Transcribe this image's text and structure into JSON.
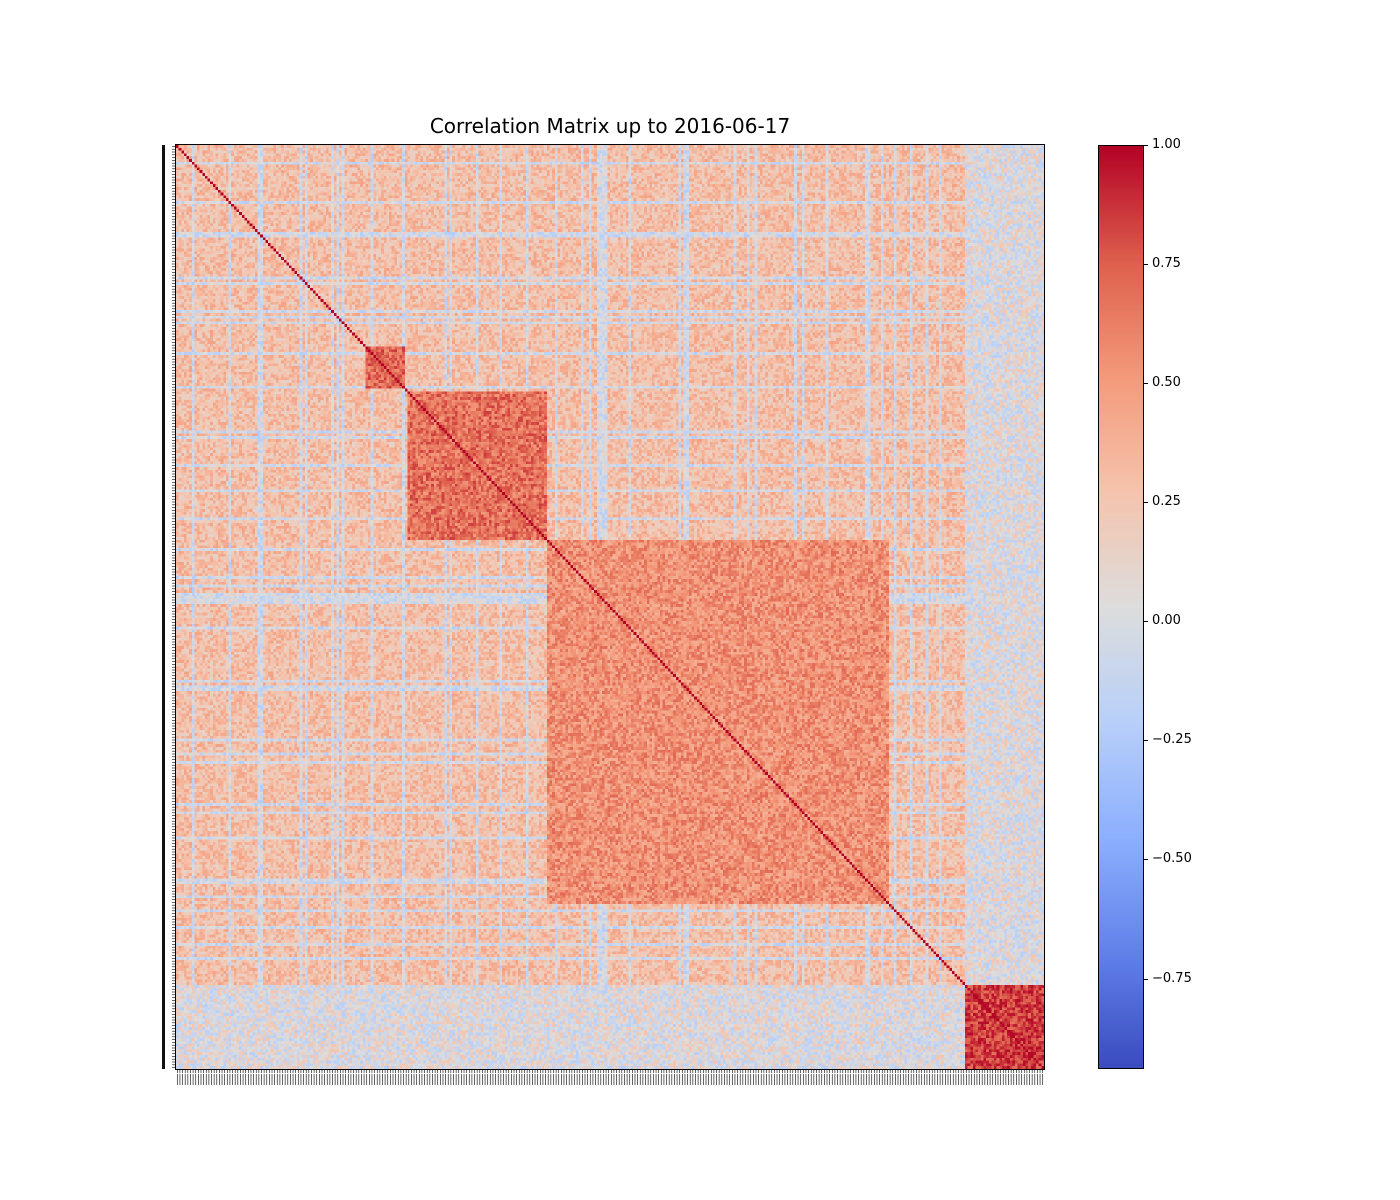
{
  "chart_data": {
    "type": "heatmap",
    "title": "Correlation Matrix up to 2016-06-17",
    "xlabel": "",
    "ylabel": "",
    "colormap": "coolwarm",
    "value_range": [
      -0.94,
      1.0
    ],
    "diagonal_value": 1.0,
    "matrix_size_approx": 330,
    "tick_labels_legible": false,
    "colorbar": {
      "ticks": [
        1.0,
        0.75,
        0.5,
        0.25,
        0.0,
        -0.25,
        -0.5,
        -0.75
      ],
      "tick_labels": [
        "1.00",
        "0.75",
        "0.50",
        "0.25",
        "0.00",
        "−0.25",
        "−0.50",
        "−0.75"
      ]
    },
    "blocks_approx": [
      {
        "index_range": [
          72,
          86
        ],
        "mean_corr": 0.72
      },
      {
        "index_range": [
          88,
          140
        ],
        "mean_corr": 0.68
      },
      {
        "index_range": [
          141,
          270
        ],
        "mean_corr": 0.55
      },
      {
        "index_range": [
          300,
          330
        ],
        "mean_corr": 0.85
      }
    ],
    "background_mean_corr": 0.3,
    "colors": {
      "min": "#3b4cc0",
      "neutral": "#dddddd",
      "max": "#b40426"
    }
  }
}
